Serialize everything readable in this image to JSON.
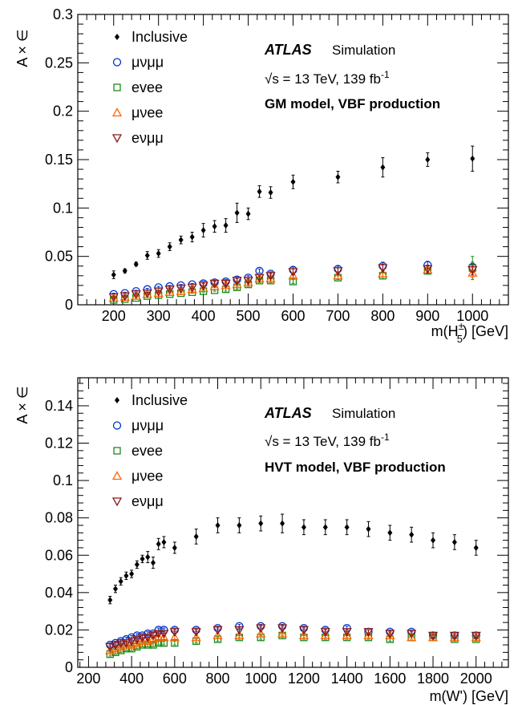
{
  "chart_data": [
    {
      "type": "scatter",
      "xlabel": "m(H",
      "xlabel_sup": "±",
      "xlabel_sub": "5",
      "xlabel_tail": ") [GeV]",
      "ylabel": "A × ∈",
      "xlim": [
        120,
        1080
      ],
      "ylim": [
        0,
        0.3
      ],
      "xticks": [
        200,
        300,
        400,
        500,
        600,
        700,
        800,
        900,
        1000
      ],
      "yticks": [
        0,
        0.05,
        0.1,
        0.15,
        0.2,
        0.25,
        0.3
      ],
      "xtick_labels": [
        "200",
        "300",
        "400",
        "500",
        "600",
        "700",
        "800",
        "900",
        "1000"
      ],
      "ytick_labels": [
        "0",
        "0.05",
        "0.1",
        "0.15",
        "0.2",
        "0.25",
        "0.3"
      ],
      "atlas_label": "ATLAS",
      "sim_label": "Simulation",
      "energy_label": "√s = 13 TeV, 139 fb",
      "energy_sup": "-1",
      "model_label": "GM model, VBF production",
      "legend_position": "top-left",
      "series": [
        {
          "name": "Inclusive",
          "marker": "diamond",
          "color": "#000000",
          "x": [
            200,
            225,
            250,
            275,
            300,
            325,
            350,
            375,
            400,
            425,
            450,
            475,
            500,
            525,
            550,
            600,
            700,
            800,
            900,
            1000
          ],
          "y": [
            0.031,
            0.035,
            0.042,
            0.051,
            0.053,
            0.06,
            0.067,
            0.07,
            0.077,
            0.081,
            0.082,
            0.095,
            0.094,
            0.117,
            0.116,
            0.127,
            0.132,
            0.142,
            0.15,
            0.151
          ],
          "err": [
            0.004,
            0.002,
            0.002,
            0.004,
            0.004,
            0.004,
            0.004,
            0.005,
            0.007,
            0.006,
            0.007,
            0.01,
            0.006,
            0.006,
            0.006,
            0.007,
            0.006,
            0.01,
            0.007,
            0.013
          ]
        },
        {
          "name": "μνμμ",
          "marker": "circle",
          "color": "#0033cc",
          "x": [
            200,
            225,
            250,
            275,
            300,
            325,
            350,
            375,
            400,
            425,
            450,
            475,
            500,
            525,
            550,
            600,
            700,
            800,
            900,
            1000
          ],
          "y": [
            0.011,
            0.012,
            0.014,
            0.016,
            0.018,
            0.019,
            0.02,
            0.021,
            0.022,
            0.023,
            0.024,
            0.026,
            0.028,
            0.035,
            0.032,
            0.036,
            0.037,
            0.04,
            0.041,
            0.039
          ],
          "err": [
            0.001,
            0.001,
            0.001,
            0.001,
            0.001,
            0.001,
            0.001,
            0.001,
            0.002,
            0.002,
            0.002,
            0.002,
            0.002,
            0.002,
            0.002,
            0.003,
            0.003,
            0.004,
            0.004,
            0.005
          ]
        },
        {
          "name": "evee",
          "marker": "square",
          "color": "#1a8a1a",
          "x": [
            200,
            225,
            250,
            275,
            300,
            325,
            350,
            375,
            400,
            425,
            450,
            475,
            500,
            525,
            550,
            600,
            700,
            800,
            900,
            1000
          ],
          "y": [
            0.005,
            0.006,
            0.007,
            0.009,
            0.01,
            0.011,
            0.012,
            0.013,
            0.014,
            0.015,
            0.016,
            0.018,
            0.021,
            0.025,
            0.025,
            0.024,
            0.028,
            0.03,
            0.035,
            0.038
          ],
          "err": [
            0.001,
            0.001,
            0.001,
            0.001,
            0.001,
            0.001,
            0.001,
            0.001,
            0.001,
            0.001,
            0.002,
            0.002,
            0.002,
            0.002,
            0.002,
            0.002,
            0.002,
            0.003,
            0.003,
            0.012
          ]
        },
        {
          "name": "μνee",
          "marker": "triangle-up",
          "color": "#ff6600",
          "x": [
            200,
            225,
            250,
            275,
            300,
            325,
            350,
            375,
            400,
            425,
            450,
            475,
            500,
            525,
            550,
            600,
            700,
            800,
            900,
            1000
          ],
          "y": [
            0.007,
            0.008,
            0.009,
            0.011,
            0.012,
            0.013,
            0.014,
            0.016,
            0.017,
            0.019,
            0.02,
            0.021,
            0.023,
            0.027,
            0.027,
            0.03,
            0.03,
            0.032,
            0.036,
            0.033
          ],
          "err": [
            0.001,
            0.001,
            0.001,
            0.001,
            0.001,
            0.001,
            0.001,
            0.001,
            0.001,
            0.001,
            0.002,
            0.002,
            0.002,
            0.002,
            0.002,
            0.002,
            0.003,
            0.003,
            0.003,
            0.005
          ]
        },
        {
          "name": "eνμμ",
          "marker": "triangle-down",
          "color": "#8b1a1a",
          "x": [
            200,
            225,
            250,
            275,
            300,
            325,
            350,
            375,
            400,
            425,
            450,
            475,
            500,
            525,
            550,
            600,
            700,
            800,
            900,
            1000
          ],
          "y": [
            0.008,
            0.009,
            0.011,
            0.012,
            0.014,
            0.016,
            0.017,
            0.018,
            0.02,
            0.022,
            0.022,
            0.025,
            0.025,
            0.028,
            0.03,
            0.034,
            0.035,
            0.038,
            0.037,
            0.036
          ],
          "err": [
            0.001,
            0.001,
            0.001,
            0.001,
            0.001,
            0.001,
            0.001,
            0.001,
            0.002,
            0.002,
            0.002,
            0.002,
            0.002,
            0.002,
            0.002,
            0.003,
            0.003,
            0.004,
            0.004,
            0.005
          ]
        }
      ]
    },
    {
      "type": "scatter",
      "xlabel": "m(W') [GeV]",
      "ylabel": "A × ∈",
      "xlim": [
        150,
        2150
      ],
      "ylim": [
        0,
        0.155
      ],
      "xticks": [
        200,
        400,
        600,
        800,
        1000,
        1200,
        1400,
        1600,
        1800,
        2000
      ],
      "yticks": [
        0,
        0.02,
        0.04,
        0.06,
        0.08,
        0.1,
        0.12,
        0.14
      ],
      "xtick_labels": [
        "200",
        "400",
        "600",
        "800",
        "1000",
        "1200",
        "1400",
        "1600",
        "1800",
        "2000"
      ],
      "ytick_labels": [
        "0",
        "0.02",
        "0.04",
        "0.06",
        "0.08",
        "0.1",
        "0.12",
        "0.14"
      ],
      "atlas_label": "ATLAS",
      "sim_label": "Simulation",
      "energy_label": "√s = 13 TeV, 139 fb",
      "energy_sup": "-1",
      "model_label": "HVT model, VBF production",
      "legend_position": "top-left",
      "series": [
        {
          "name": "Inclusive",
          "marker": "diamond",
          "color": "#000000",
          "x": [
            300,
            325,
            350,
            375,
            400,
            425,
            450,
            475,
            500,
            525,
            550,
            600,
            700,
            800,
            900,
            1000,
            1100,
            1200,
            1300,
            1400,
            1500,
            1600,
            1700,
            1800,
            1900,
            2000
          ],
          "y": [
            0.036,
            0.042,
            0.046,
            0.049,
            0.05,
            0.055,
            0.058,
            0.059,
            0.056,
            0.066,
            0.067,
            0.064,
            0.07,
            0.076,
            0.076,
            0.077,
            0.077,
            0.075,
            0.075,
            0.075,
            0.074,
            0.072,
            0.071,
            0.068,
            0.067,
            0.064
          ],
          "err": [
            0.002,
            0.002,
            0.002,
            0.002,
            0.002,
            0.002,
            0.002,
            0.003,
            0.003,
            0.003,
            0.003,
            0.003,
            0.004,
            0.004,
            0.004,
            0.004,
            0.005,
            0.004,
            0.004,
            0.004,
            0.004,
            0.004,
            0.004,
            0.004,
            0.004,
            0.004
          ]
        },
        {
          "name": "μνμμ",
          "marker": "circle",
          "color": "#0033cc",
          "x": [
            300,
            325,
            350,
            375,
            400,
            425,
            450,
            475,
            500,
            525,
            550,
            600,
            700,
            800,
            900,
            1000,
            1100,
            1200,
            1300,
            1400,
            1500,
            1600,
            1700,
            1800,
            1900,
            2000
          ],
          "y": [
            0.012,
            0.013,
            0.014,
            0.015,
            0.016,
            0.017,
            0.017,
            0.018,
            0.018,
            0.02,
            0.02,
            0.02,
            0.02,
            0.021,
            0.022,
            0.022,
            0.022,
            0.021,
            0.02,
            0.021,
            0.019,
            0.019,
            0.019,
            0.017,
            0.017,
            0.017
          ],
          "err": [
            0.001,
            0.001,
            0.001,
            0.001,
            0.001,
            0.001,
            0.001,
            0.001,
            0.001,
            0.001,
            0.001,
            0.001,
            0.001,
            0.001,
            0.001,
            0.001,
            0.001,
            0.001,
            0.001,
            0.001,
            0.001,
            0.001,
            0.001,
            0.001,
            0.001,
            0.001
          ]
        },
        {
          "name": "evee",
          "marker": "square",
          "color": "#1a8a1a",
          "x": [
            300,
            325,
            350,
            375,
            400,
            425,
            450,
            475,
            500,
            525,
            550,
            600,
            700,
            800,
            900,
            1000,
            1100,
            1200,
            1300,
            1400,
            1500,
            1600,
            1700,
            1800,
            1900,
            2000
          ],
          "y": [
            0.007,
            0.008,
            0.009,
            0.01,
            0.01,
            0.011,
            0.012,
            0.012,
            0.012,
            0.013,
            0.013,
            0.013,
            0.014,
            0.015,
            0.016,
            0.016,
            0.017,
            0.016,
            0.016,
            0.016,
            0.016,
            0.015,
            0.016,
            0.016,
            0.015,
            0.015
          ],
          "err": [
            0.001,
            0.001,
            0.001,
            0.001,
            0.001,
            0.001,
            0.001,
            0.001,
            0.001,
            0.001,
            0.001,
            0.001,
            0.001,
            0.001,
            0.001,
            0.001,
            0.001,
            0.001,
            0.001,
            0.001,
            0.001,
            0.001,
            0.001,
            0.001,
            0.001,
            0.001
          ]
        },
        {
          "name": "μνee",
          "marker": "triangle-up",
          "color": "#ff6600",
          "x": [
            300,
            325,
            350,
            375,
            400,
            425,
            450,
            475,
            500,
            525,
            550,
            600,
            700,
            800,
            900,
            1000,
            1100,
            1200,
            1300,
            1400,
            1500,
            1600,
            1700,
            1800,
            1900,
            2000
          ],
          "y": [
            0.009,
            0.01,
            0.011,
            0.012,
            0.012,
            0.013,
            0.014,
            0.014,
            0.015,
            0.016,
            0.016,
            0.016,
            0.016,
            0.017,
            0.017,
            0.018,
            0.018,
            0.017,
            0.017,
            0.017,
            0.017,
            0.017,
            0.016,
            0.016,
            0.016,
            0.016
          ],
          "err": [
            0.001,
            0.001,
            0.001,
            0.001,
            0.001,
            0.001,
            0.001,
            0.001,
            0.001,
            0.001,
            0.001,
            0.001,
            0.001,
            0.001,
            0.001,
            0.001,
            0.001,
            0.001,
            0.001,
            0.001,
            0.001,
            0.001,
            0.001,
            0.001,
            0.001,
            0.001
          ]
        },
        {
          "name": "eνμμ",
          "marker": "triangle-down",
          "color": "#8b1a1a",
          "x": [
            300,
            325,
            350,
            375,
            400,
            425,
            450,
            475,
            500,
            525,
            550,
            600,
            700,
            800,
            900,
            1000,
            1100,
            1200,
            1300,
            1400,
            1500,
            1600,
            1700,
            1800,
            1900,
            2000
          ],
          "y": [
            0.011,
            0.012,
            0.013,
            0.013,
            0.014,
            0.015,
            0.016,
            0.016,
            0.017,
            0.018,
            0.018,
            0.019,
            0.019,
            0.02,
            0.02,
            0.021,
            0.021,
            0.02,
            0.019,
            0.019,
            0.019,
            0.018,
            0.018,
            0.017,
            0.017,
            0.017
          ],
          "err": [
            0.001,
            0.001,
            0.001,
            0.001,
            0.001,
            0.001,
            0.001,
            0.001,
            0.001,
            0.001,
            0.001,
            0.001,
            0.001,
            0.001,
            0.001,
            0.001,
            0.001,
            0.001,
            0.001,
            0.001,
            0.001,
            0.001,
            0.001,
            0.001,
            0.001,
            0.001
          ]
        }
      ]
    }
  ]
}
